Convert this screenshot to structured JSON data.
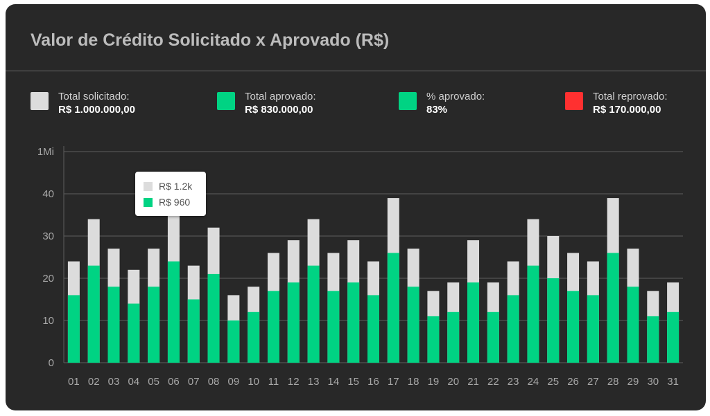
{
  "title": "Valor de Crédito Solicitado x Aprovado (R$)",
  "colors": {
    "requested": "#dcdcdc",
    "approved": "#00d383",
    "rejected": "#ff3030",
    "background": "#282828"
  },
  "legend": [
    {
      "label": "Total solicitado:",
      "value": "R$ 1.000.000,00",
      "color": "#dcdcdc"
    },
    {
      "label": "Total aprovado:",
      "value": "R$ 830.000,00",
      "color": "#00d383"
    },
    {
      "label": "% aprovado:",
      "value": "83%",
      "color": "#00d383"
    },
    {
      "label": "Total reprovado:",
      "value": "R$ 170.000,00",
      "color": "#ff3030"
    }
  ],
  "tooltip": {
    "requested": "R$ 1.2k",
    "approved": "R$ 960"
  },
  "chart_data": {
    "type": "bar",
    "stacked": "overlay",
    "categories": [
      "01",
      "02",
      "03",
      "04",
      "05",
      "06",
      "07",
      "08",
      "09",
      "10",
      "11",
      "12",
      "13",
      "14",
      "15",
      "16",
      "17",
      "18",
      "19",
      "20",
      "21",
      "22",
      "23",
      "24",
      "25",
      "26",
      "27",
      "28",
      "29",
      "30",
      "31"
    ],
    "yticks": [
      0,
      10,
      20,
      30,
      40,
      50
    ],
    "ytick_labels": [
      "0",
      "10",
      "20",
      "30",
      "40",
      "1Mi"
    ],
    "ylim": [
      0,
      52
    ],
    "grid": true,
    "series": [
      {
        "values": [
          24,
          34,
          27,
          22,
          27,
          37,
          23,
          32,
          16,
          18,
          26,
          29,
          34,
          26,
          29,
          24,
          39,
          27,
          17,
          19,
          29,
          19,
          24,
          34,
          30,
          26,
          24,
          39,
          27,
          17,
          19
        ]
      },
      {
        "values": [
          16,
          23,
          18,
          14,
          18,
          24,
          15,
          21,
          10,
          12,
          17,
          19,
          23,
          17,
          19,
          16,
          26,
          18,
          11,
          12,
          19,
          12,
          16,
          23,
          20,
          17,
          16,
          26,
          18,
          11,
          12
        ]
      }
    ]
  }
}
